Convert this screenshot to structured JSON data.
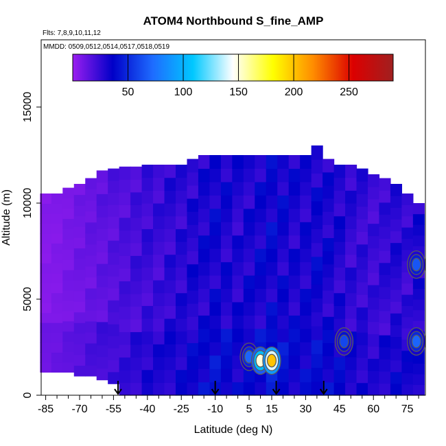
{
  "chart_data": {
    "type": "heatmap",
    "title": "ATOM4 Northbound S_fine_AMP",
    "flights_label": "Flts: 7,8,9,10,11,12",
    "dates_label": "MMDD: 0509,0512,0514,0517,0518,0519",
    "xlabel": "Latitude (deg N)",
    "ylabel": "Altitude (m)",
    "xlim": [
      -87,
      83
    ],
    "ylim": [
      0,
      18500
    ],
    "x_ticks": [
      -85,
      -70,
      -55,
      -40,
      -25,
      -10,
      5,
      15,
      30,
      45,
      60,
      75
    ],
    "x_minor_ticks": [
      -80,
      -75,
      -65,
      -60,
      -50,
      -45,
      -35,
      -30,
      -20,
      -15,
      -5,
      0,
      10,
      20,
      25,
      35,
      40,
      50,
      55,
      65,
      70,
      80
    ],
    "y_ticks": [
      0,
      5000,
      10000,
      15000
    ],
    "colorbar": {
      "range": [
        0,
        290
      ],
      "ticks": [
        50,
        100,
        150,
        200,
        250
      ],
      "colors": [
        "#9b1ef0",
        "#0000c8",
        "#1e6cff",
        "#00c8ff",
        "#ffffff",
        "#ffff00",
        "#ff8c00",
        "#dc0000",
        "#a02020"
      ]
    },
    "profile_arrows_lat": [
      -53,
      -10,
      17,
      38
    ],
    "columns": [
      {
        "lat": -85,
        "top": 10500,
        "bottom": 1200,
        "value": 5
      },
      {
        "lat": -80,
        "top": 10500,
        "bottom": 1200,
        "value": 6
      },
      {
        "lat": -75,
        "top": 10800,
        "bottom": 1200,
        "value": 8
      },
      {
        "lat": -70,
        "top": 11000,
        "bottom": 1000,
        "value": 10
      },
      {
        "lat": -65,
        "top": 11300,
        "bottom": 1000,
        "value": 12
      },
      {
        "lat": -60,
        "top": 11700,
        "bottom": 800,
        "value": 14
      },
      {
        "lat": -55,
        "top": 11800,
        "bottom": 600,
        "value": 16
      },
      {
        "lat": -50,
        "top": 11900,
        "bottom": 0,
        "value": 18
      },
      {
        "lat": -45,
        "top": 11900,
        "bottom": 0,
        "value": 20
      },
      {
        "lat": -40,
        "top": 12000,
        "bottom": 0,
        "value": 22
      },
      {
        "lat": -35,
        "top": 12000,
        "bottom": 0,
        "value": 22
      },
      {
        "lat": -30,
        "top": 12000,
        "bottom": 0,
        "value": 25
      },
      {
        "lat": -25,
        "top": 12000,
        "bottom": 0,
        "value": 26
      },
      {
        "lat": -20,
        "top": 12300,
        "bottom": 0,
        "value": 28
      },
      {
        "lat": -15,
        "top": 12500,
        "bottom": 0,
        "value": 30
      },
      {
        "lat": -10,
        "top": 12500,
        "bottom": 0,
        "value": 32
      },
      {
        "lat": -5,
        "top": 12500,
        "bottom": 0,
        "value": 30
      },
      {
        "lat": 0,
        "top": 12500,
        "bottom": 0,
        "value": 28
      },
      {
        "lat": 5,
        "top": 12500,
        "bottom": 0,
        "value": 30
      },
      {
        "lat": 10,
        "top": 12500,
        "bottom": 0,
        "value": 32
      },
      {
        "lat": 15,
        "top": 12500,
        "bottom": 0,
        "value": 34
      },
      {
        "lat": 20,
        "top": 12500,
        "bottom": 0,
        "value": 32
      },
      {
        "lat": 25,
        "top": 12500,
        "bottom": 0,
        "value": 30
      },
      {
        "lat": 30,
        "top": 12500,
        "bottom": 0,
        "value": 30
      },
      {
        "lat": 35,
        "top": 13000,
        "bottom": 0,
        "value": 32
      },
      {
        "lat": 40,
        "top": 12300,
        "bottom": 0,
        "value": 30
      },
      {
        "lat": 45,
        "top": 12000,
        "bottom": 0,
        "value": 28
      },
      {
        "lat": 50,
        "top": 12000,
        "bottom": 0,
        "value": 25
      },
      {
        "lat": 55,
        "top": 11800,
        "bottom": 0,
        "value": 24
      },
      {
        "lat": 60,
        "top": 11500,
        "bottom": 0,
        "value": 22
      },
      {
        "lat": 65,
        "top": 11300,
        "bottom": 0,
        "value": 24
      },
      {
        "lat": 70,
        "top": 11000,
        "bottom": 0,
        "value": 26
      },
      {
        "lat": 75,
        "top": 10500,
        "bottom": 0,
        "value": 24
      },
      {
        "lat": 80,
        "top": 10000,
        "bottom": 0,
        "value": 28
      }
    ],
    "hotspots": [
      {
        "lat": 5,
        "alt": 2000,
        "value": 70
      },
      {
        "lat": 10,
        "alt": 1800,
        "value": 150
      },
      {
        "lat": 15,
        "alt": 1800,
        "value": 200
      },
      {
        "lat": 47,
        "alt": 2800,
        "value": 60
      },
      {
        "lat": 79,
        "alt": 6800,
        "value": 65
      },
      {
        "lat": 79,
        "alt": 2800,
        "value": 70
      }
    ]
  }
}
